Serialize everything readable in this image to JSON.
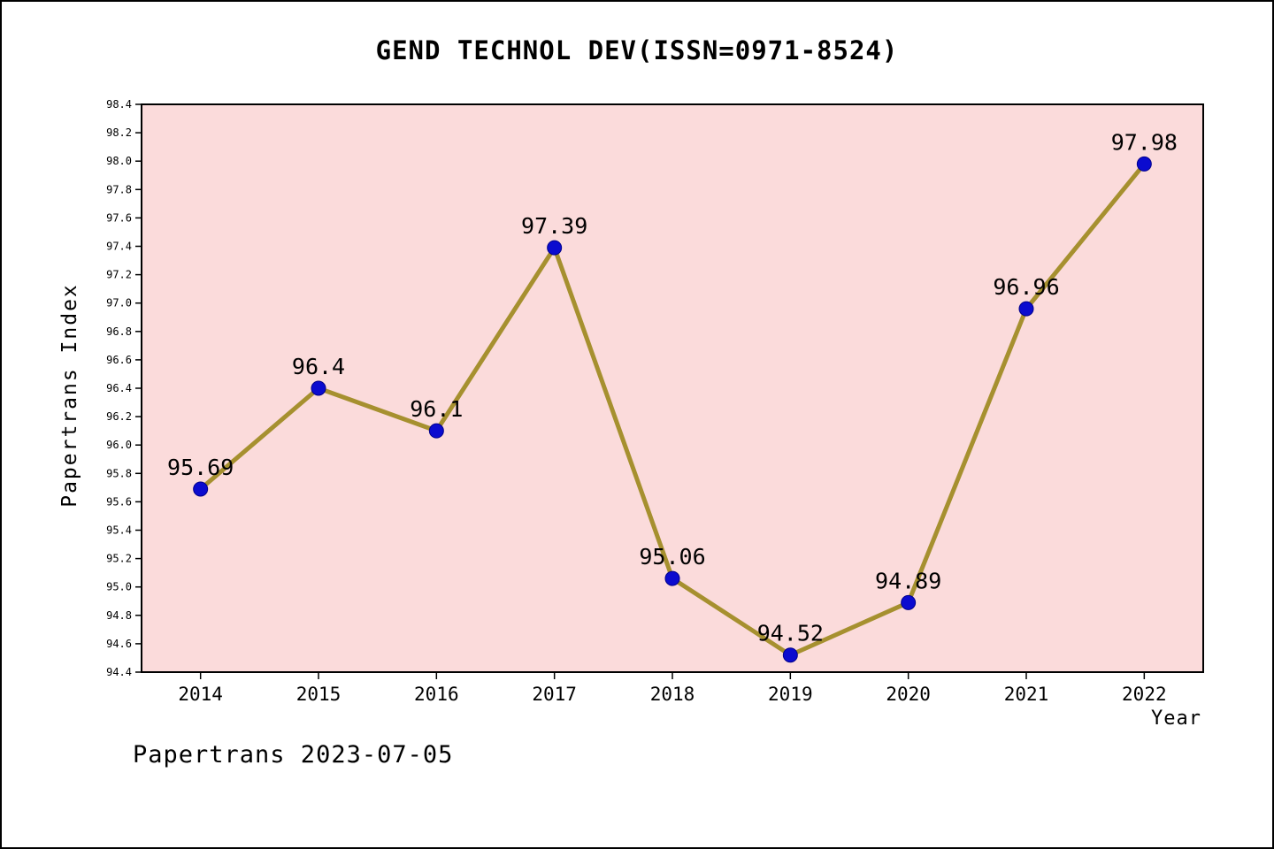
{
  "page": {
    "footer": "Papertrans 2023-07-05"
  },
  "chart_data": {
    "type": "line",
    "title": "GEND TECHNOL DEV(ISSN=0971-8524)",
    "xlabel": "Year",
    "ylabel": "Papertrans Index",
    "categories": [
      "2014",
      "2015",
      "2016",
      "2017",
      "2018",
      "2019",
      "2020",
      "2021",
      "2022"
    ],
    "values": [
      95.69,
      96.4,
      96.1,
      97.39,
      95.06,
      94.52,
      94.89,
      96.96,
      97.98
    ],
    "point_labels": [
      "95.69",
      "96.4",
      "96.1",
      "97.39",
      "95.06",
      "94.52",
      "94.89",
      "96.96",
      "97.98"
    ],
    "ylim": [
      94.4,
      98.4
    ],
    "ytick_step": 0.2,
    "grid": false,
    "legend": "none",
    "colors": {
      "plot_bg": "#fbdbdb",
      "line": "#a6902f",
      "marker": "#0b0bcf",
      "marker_edge": "#00008b",
      "axis": "#000000",
      "text": "#000000"
    }
  }
}
